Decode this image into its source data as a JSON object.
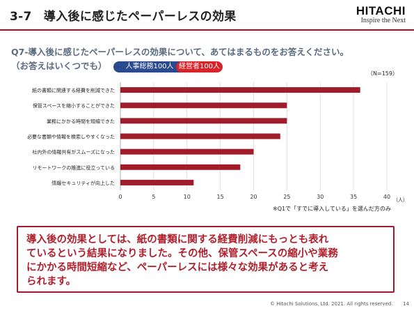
{
  "header": {
    "title": "3-7　導入後に感じたペーパーレスの効果",
    "brand_name": "HITACHI",
    "brand_tagline": "Inspire the Next"
  },
  "question": {
    "line1": "Q7-導入後に感じたペーパーレスの効果について、あてはまるものをお答えください。",
    "line2": "（お答えはいくつでも）",
    "badge_hr": "人事総務100人",
    "badge_mgr": "経営者100人"
  },
  "chart_data": {
    "type": "bar",
    "orientation": "horizontal",
    "categories": [
      "紙の書類に関連する経費を削減できた",
      "保管スペースを縮小することができた",
      "業務にかかる時間を短縮できた",
      "必要な書類や情報を検索しやすくなった",
      "社内外の情報共有がスムーズになった",
      "リモートワークの推進に役立っている",
      "情報セキュリティが向上した"
    ],
    "values": [
      36,
      25,
      25,
      24,
      20,
      18,
      11
    ],
    "sample_note": "（N=159）",
    "unit_label": "（人）",
    "xlim": [
      0,
      40
    ],
    "ticks": [
      0,
      5,
      10,
      15,
      20,
      25,
      30,
      35,
      40
    ],
    "grid": true,
    "bar_color": "#a01c2a"
  },
  "footnote": "※Q1で「すでに導入している」を選んだ方のみ",
  "conclusion": {
    "line1": "導入後の効果としては、紙の書類に関する経費削減にもっとも表れ",
    "line2": "ているという結果になりました。その他、保管スペースの縮小や業務",
    "line3": "にかかる時間短縮など、ペーパーレスには様々な効果があると考え",
    "line4": "られます。"
  },
  "footer": {
    "copyright": "© Hitachi Solutions, Ltd. 2021. All rights reserved.",
    "page_number": "14"
  }
}
